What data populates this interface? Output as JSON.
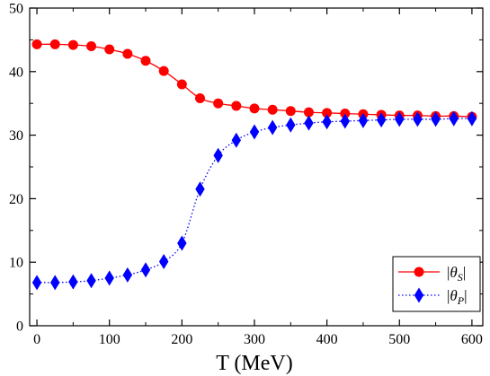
{
  "chart_data": {
    "type": "line",
    "title": "",
    "xlabel": "T (MeV)",
    "ylabel": "",
    "xlim": [
      -10,
      615
    ],
    "ylim": [
      0,
      50
    ],
    "xticks": [
      0,
      100,
      200,
      300,
      400,
      500,
      600
    ],
    "yticks": [
      0,
      10,
      20,
      30,
      40,
      50
    ],
    "grid": false,
    "legend_position": "bottom-right",
    "x": [
      0,
      25,
      50,
      75,
      100,
      125,
      150,
      175,
      200,
      225,
      250,
      275,
      300,
      325,
      350,
      375,
      400,
      425,
      450,
      475,
      500,
      525,
      550,
      575,
      600
    ],
    "series": [
      {
        "name": "|θS|",
        "legend_base": "θ",
        "legend_sub": "S",
        "color": "#ff0000",
        "marker": "circle",
        "line_style": "solid",
        "values": [
          44.3,
          44.3,
          44.2,
          44.0,
          43.5,
          42.8,
          41.7,
          40.1,
          38.0,
          35.8,
          35.0,
          34.6,
          34.2,
          34.0,
          33.8,
          33.6,
          33.5,
          33.4,
          33.3,
          33.2,
          33.1,
          33.1,
          33.0,
          33.0,
          32.9
        ]
      },
      {
        "name": "|θP|",
        "legend_base": "θ",
        "legend_sub": "P",
        "color": "#0000ff",
        "marker": "diamond",
        "line_style": "dotted",
        "values": [
          6.8,
          6.8,
          6.9,
          7.1,
          7.5,
          8.0,
          8.8,
          10.1,
          13.0,
          21.5,
          26.8,
          29.2,
          30.5,
          31.2,
          31.6,
          31.9,
          32.1,
          32.2,
          32.3,
          32.4,
          32.5,
          32.5,
          32.5,
          32.6,
          32.6
        ]
      }
    ]
  }
}
